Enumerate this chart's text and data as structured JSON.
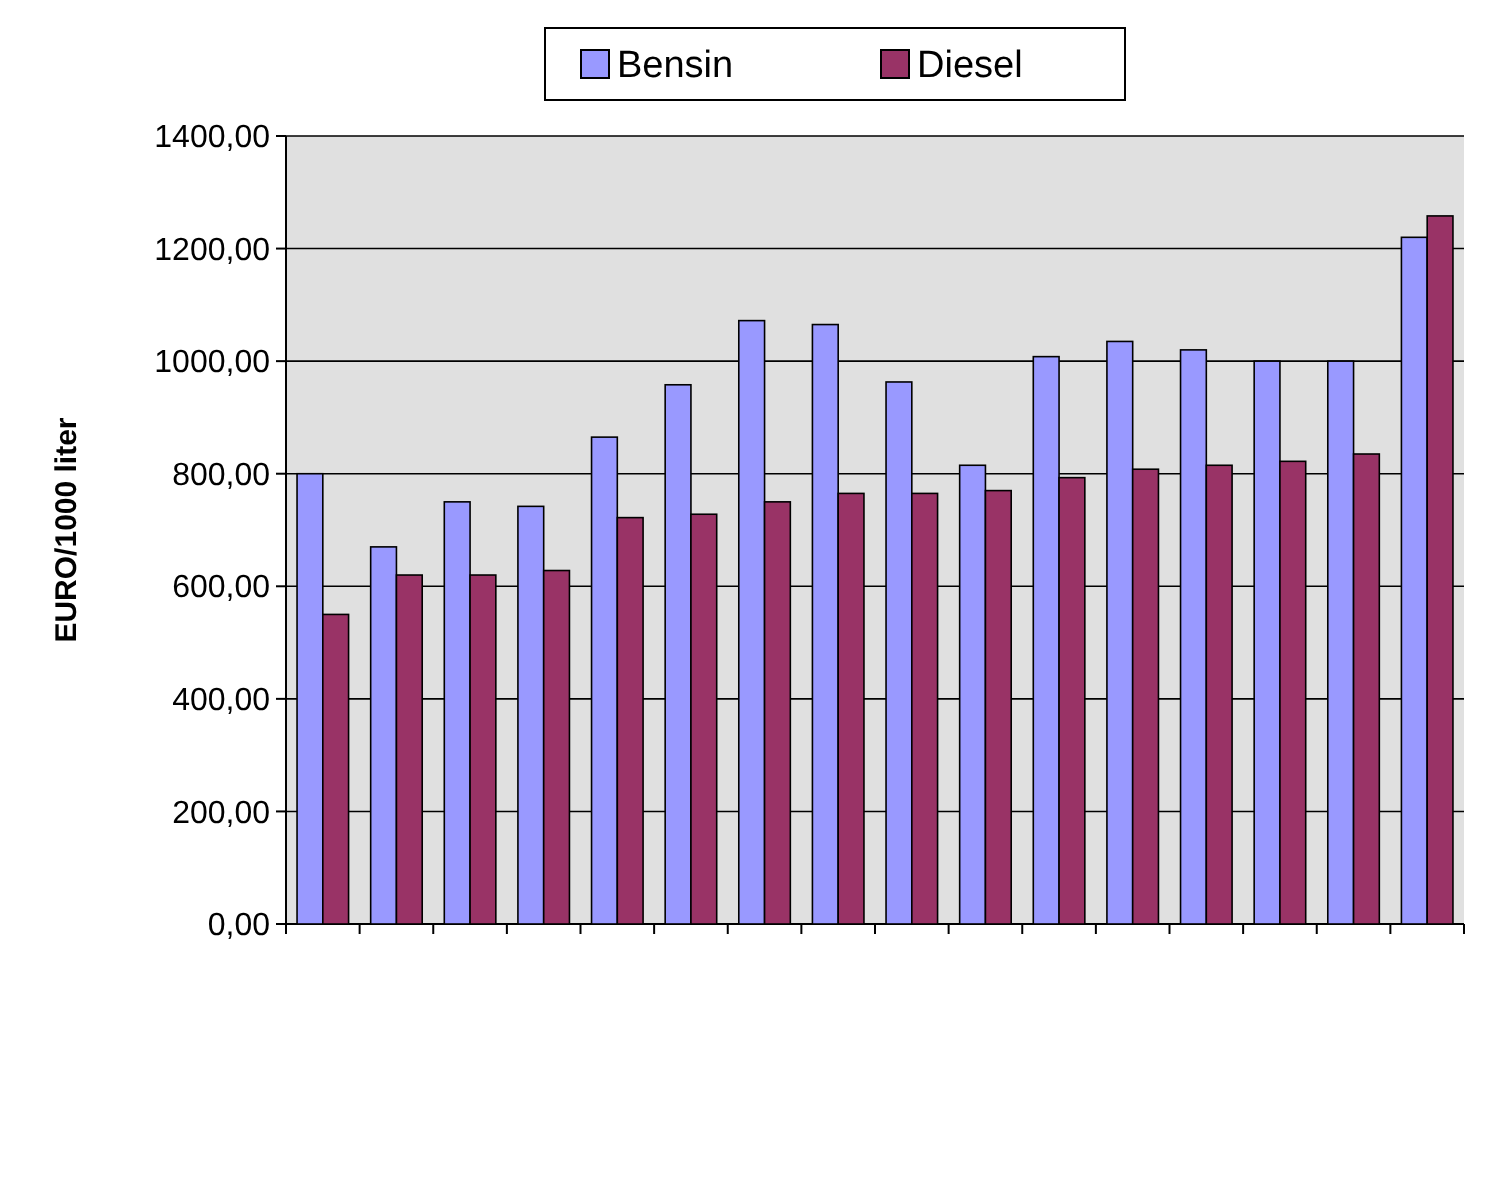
{
  "chart_data": {
    "type": "bar",
    "ylabel": "EURO/1000 liter",
    "categories": [
      null,
      null,
      null,
      null,
      null,
      null,
      null,
      null,
      null,
      null,
      null,
      null,
      null,
      null,
      null,
      null
    ],
    "series": [
      {
        "name": "Bensin",
        "color": "#9999ff",
        "values": [
          800,
          670,
          750,
          742,
          865,
          958,
          1072,
          1065,
          963,
          815,
          1008,
          1035,
          1020,
          1000,
          1000,
          1220
        ]
      },
      {
        "name": "Diesel",
        "color": "#993366",
        "values": [
          550,
          620,
          620,
          628,
          722,
          728,
          750,
          765,
          765,
          770,
          793,
          808,
          815,
          822,
          835,
          1258
        ]
      }
    ],
    "ylim": [
      0,
      1400
    ],
    "yticks": [
      {
        "value": 0,
        "label": "0,00"
      },
      {
        "value": 200,
        "label": "200,00"
      },
      {
        "value": 400,
        "label": "400,00"
      },
      {
        "value": 600,
        "label": "600,00"
      },
      {
        "value": 800,
        "label": "800,00"
      },
      {
        "value": 1000,
        "label": "1000,00"
      },
      {
        "value": 1200,
        "label": "1200,00"
      },
      {
        "value": 1400,
        "label": "1400,00"
      }
    ],
    "grid": "y",
    "legend": "top"
  }
}
